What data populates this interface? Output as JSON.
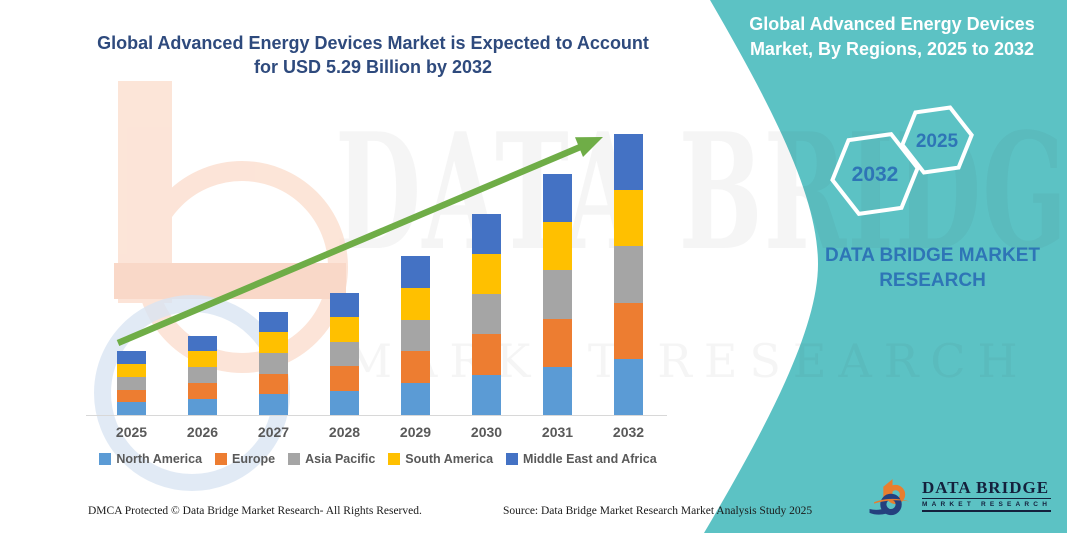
{
  "header": {
    "main_title_line1": "Global Advanced Energy Devices Market is Expected to Account",
    "main_title_line2": "for USD 5.29 Billion by 2032",
    "banner_title_line1": "Global Advanced Energy Devices",
    "banner_title_line2": "Market, By Regions, 2025 to 2032"
  },
  "side_panel": {
    "hexagon_back_label": "2032",
    "hexagon_front_label": "2025",
    "brand_line1": "DATA BRIDGE MARKET",
    "brand_line2": "RESEARCH"
  },
  "watermark": {
    "line1": "DATA BRIDGE",
    "line2": "MARKET RESEARCH"
  },
  "chart_data": {
    "type": "bar",
    "stacked": true,
    "title": "Global Advanced Energy Devices Market is Expected to Account for USD 5.29 Billion by 2032",
    "unit": "USD Billion",
    "categories": [
      "2025",
      "2026",
      "2027",
      "2028",
      "2029",
      "2030",
      "2031",
      "2032"
    ],
    "series": [
      {
        "name": "North America",
        "color": "#5B9BD5",
        "values": [
          0.24,
          0.3,
          0.39,
          0.46,
          0.6,
          0.76,
          0.91,
          1.06
        ]
      },
      {
        "name": "Europe",
        "color": "#ED7D31",
        "values": [
          0.24,
          0.3,
          0.39,
          0.46,
          0.6,
          0.76,
          0.91,
          1.06
        ]
      },
      {
        "name": "Asia Pacific",
        "color": "#A5A5A5",
        "values": [
          0.24,
          0.3,
          0.39,
          0.46,
          0.6,
          0.76,
          0.91,
          1.06
        ]
      },
      {
        "name": "South America",
        "color": "#FFC000",
        "values": [
          0.24,
          0.3,
          0.39,
          0.46,
          0.6,
          0.76,
          0.91,
          1.06
        ]
      },
      {
        "name": "Middle East and Africa",
        "color": "#4472C4",
        "values": [
          0.24,
          0.3,
          0.39,
          0.46,
          0.6,
          0.76,
          0.91,
          1.06
        ]
      }
    ],
    "totals": [
      1.19,
      1.51,
      1.93,
      2.31,
      3.02,
      3.8,
      4.53,
      5.29
    ],
    "ylim": [
      0,
      5.6
    ],
    "grid": false,
    "y_axis_visible": false,
    "legend_position": "bottom",
    "trend_arrow": true
  },
  "footer": {
    "left": "DMCA Protected © Data Bridge Market Research-  All Rights Reserved.",
    "source": "Source: Data Bridge Market Research  Market Analysis Study 2025"
  },
  "logo": {
    "name": "DATA BRIDGE",
    "tagline": "MARKET RESEARCH"
  },
  "colors": {
    "teal_banner": "#5CC2C4",
    "title_blue": "#2E4A7D",
    "brand_blue": "#2E75B6",
    "arrow_green": "#6FAD47",
    "axis_text": "#595959"
  }
}
